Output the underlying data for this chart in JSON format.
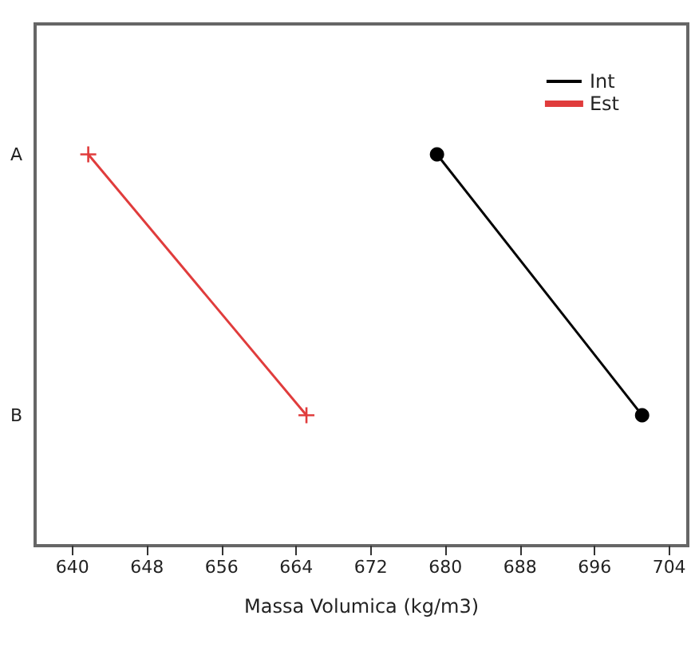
{
  "chart_data": {
    "type": "line",
    "xlabel": "Massa Volumica (kg/m3)",
    "categories": [
      "A",
      "B"
    ],
    "orientation": "horizontal",
    "xlim": [
      636,
      706
    ],
    "xticks": [
      640,
      648,
      656,
      664,
      672,
      680,
      688,
      696,
      704
    ],
    "grid": false,
    "legend": "top right",
    "series": [
      {
        "name": "Int",
        "color": "#000000",
        "marker": "circle",
        "values": [
          679.1,
          701.1
        ]
      },
      {
        "name": "Est",
        "color": "#e03c3c",
        "marker": "cross",
        "values": [
          641.7,
          665.1
        ]
      }
    ]
  }
}
